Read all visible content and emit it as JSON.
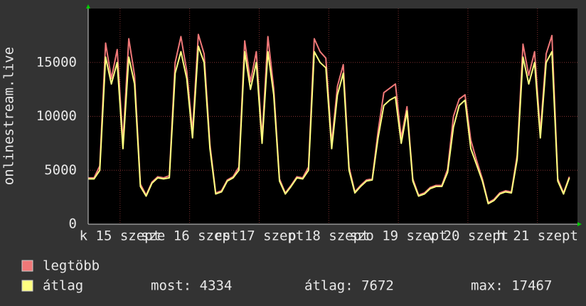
{
  "chart_data": {
    "type": "line",
    "ylabel": "onlinestream.live",
    "ylim": [
      0,
      20000
    ],
    "yticks": [
      0,
      5000,
      10000,
      15000
    ],
    "xlim": [
      0,
      84.4
    ],
    "xticks": [
      {
        "value": 5.5,
        "label": "k 15 szept"
      },
      {
        "value": 17.5,
        "label": "sze 16 szept"
      },
      {
        "value": 29.5,
        "label": "cs 17 szept"
      },
      {
        "value": 41.5,
        "label": "p 18 szept"
      },
      {
        "value": 53.5,
        "label": "szo 19 szept"
      },
      {
        "value": 65.5,
        "label": "v 20 szept"
      },
      {
        "value": 77.5,
        "label": "h 21 szept"
      }
    ],
    "grid": true,
    "series": [
      {
        "name": "legtöbb",
        "color": "#f07878",
        "values": [
          4300,
          4300,
          5400,
          16800,
          13500,
          16200,
          7600,
          17200,
          13800,
          3700,
          2700,
          3900,
          4400,
          4300,
          4500,
          15000,
          17400,
          14200,
          8600,
          17600,
          15800,
          7400,
          2900,
          3100,
          4100,
          4400,
          5300,
          17000,
          13200,
          16000,
          8000,
          17400,
          12600,
          4200,
          2900,
          3600,
          4400,
          4300,
          5300,
          17200,
          16000,
          15400,
          7500,
          12800,
          14800,
          5300,
          3000,
          3600,
          4100,
          4200,
          8600,
          12200,
          12600,
          13000,
          8000,
          10900,
          4200,
          2700,
          2900,
          3400,
          3600,
          3600,
          5100,
          10000,
          11600,
          12000,
          7800,
          5900,
          4200,
          2000,
          2300,
          2900,
          3100,
          3000,
          6400,
          16700,
          13800,
          16000,
          8500,
          15800,
          17500,
          4200,
          2900,
          4400
        ]
      },
      {
        "name": "átlag",
        "color": "#ffff80",
        "values": [
          4200,
          4200,
          5000,
          15500,
          13000,
          15000,
          7000,
          15500,
          13000,
          3500,
          2600,
          3800,
          4300,
          4200,
          4300,
          14000,
          16000,
          13500,
          8000,
          16500,
          15000,
          7000,
          2800,
          3000,
          4000,
          4300,
          5000,
          16000,
          12500,
          15000,
          7500,
          16000,
          12000,
          4000,
          2800,
          3500,
          4300,
          4200,
          5000,
          16000,
          15000,
          14500,
          7000,
          12000,
          14000,
          5000,
          2900,
          3500,
          4000,
          4100,
          8000,
          11000,
          11500,
          11800,
          7500,
          10500,
          4000,
          2600,
          2800,
          3300,
          3500,
          3500,
          4800,
          9000,
          11000,
          11500,
          7000,
          5500,
          4000,
          1900,
          2200,
          2800,
          3000,
          2900,
          6000,
          15500,
          13000,
          15000,
          8000,
          15000,
          16000,
          4000,
          2800,
          4300
        ]
      }
    ],
    "stats": [
      "most: 4334",
      "átlag: 7672",
      "max: 17467"
    ]
  }
}
